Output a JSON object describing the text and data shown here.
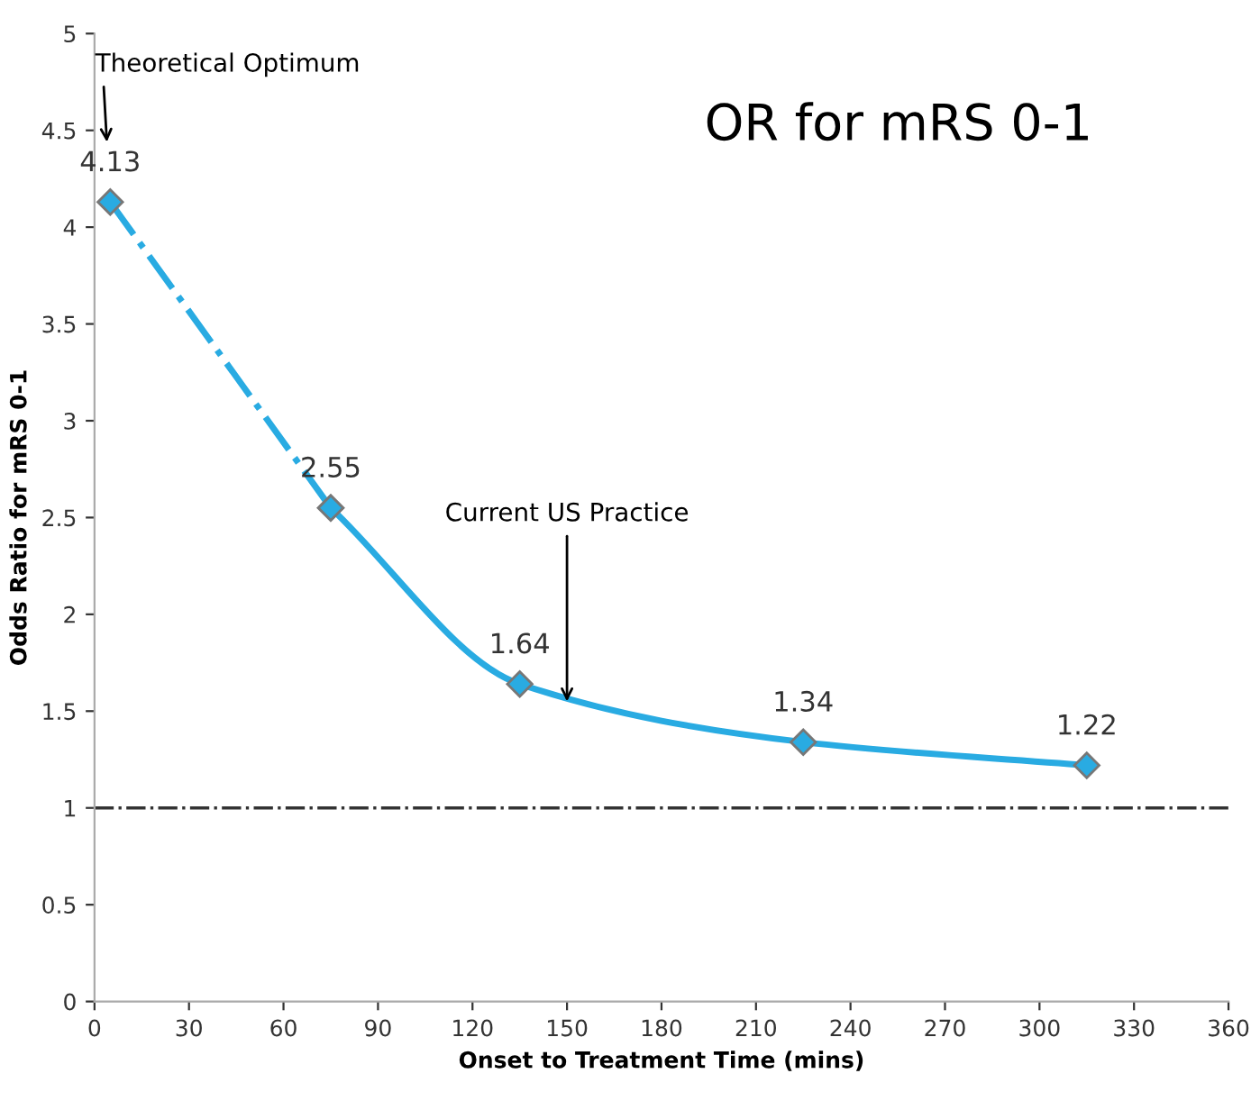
{
  "chart_data": {
    "type": "line",
    "title": "OR for mRS 0-1",
    "xlabel": "Onset to Treatment Time (mins)",
    "ylabel": "Odds Ratio for mRS 0-1",
    "series": [
      {
        "color": "#29abe2",
        "x": [
          5,
          75
        ],
        "values": [
          4.13,
          2.55
        ],
        "line_style": "dashdot",
        "value_labels": [
          "4.13",
          null
        ]
      },
      {
        "color": "#29abe2",
        "x": [
          75,
          135,
          225,
          315
        ],
        "values": [
          2.55,
          1.64,
          1.34,
          1.22
        ],
        "line_style": "solid",
        "value_labels": [
          "2.55",
          "1.64",
          "1.34",
          "1.22"
        ]
      }
    ],
    "marker": "diamond",
    "xlim": [
      0,
      360
    ],
    "xticks": [
      0,
      30,
      60,
      90,
      120,
      150,
      180,
      210,
      240,
      270,
      300,
      330,
      360
    ],
    "ylim": [
      0,
      5
    ],
    "yticks": [
      0,
      0.5,
      1,
      1.5,
      2,
      2.5,
      3,
      3.5,
      4,
      4.5,
      5
    ],
    "ref_lines": [
      {
        "axis": "y",
        "value": 1,
        "color": "#333333",
        "line_style": "dashdot"
      }
    ],
    "annotations": [
      "Theoretical Optimum",
      {
        "text": "Current US Practice",
        "x": 150,
        "y": 1.55
      }
    ],
    "grid": false,
    "legend": false
  }
}
